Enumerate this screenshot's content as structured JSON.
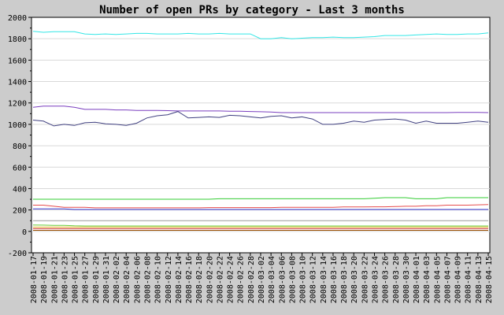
{
  "chart_data": {
    "type": "line",
    "title": "Number of open PRs by category - Last 3 months",
    "xlabel": "",
    "ylabel": "",
    "ylim": [
      -200,
      2000
    ],
    "yticks": [
      -200,
      0,
      200,
      400,
      600,
      800,
      1000,
      1200,
      1400,
      1600,
      1800,
      2000
    ],
    "grid": true,
    "legend": "none",
    "x": [
      "2008-01-17",
      "2008-01-19",
      "2008-01-21",
      "2008-01-23",
      "2008-01-25",
      "2008-01-27",
      "2008-01-29",
      "2008-01-31",
      "2008-02-02",
      "2008-02-04",
      "2008-02-06",
      "2008-02-08",
      "2008-02-10",
      "2008-02-12",
      "2008-02-14",
      "2008-02-16",
      "2008-02-18",
      "2008-02-20",
      "2008-02-22",
      "2008-02-24",
      "2008-02-26",
      "2008-02-28",
      "2008-03-02",
      "2008-03-04",
      "2008-03-06",
      "2008-03-08",
      "2008-03-10",
      "2008-03-12",
      "2008-03-14",
      "2008-03-16",
      "2008-03-18",
      "2008-03-20",
      "2008-03-22",
      "2008-03-24",
      "2008-03-26",
      "2008-03-28",
      "2008-03-30",
      "2008-04-01",
      "2008-04-03",
      "2008-04-05",
      "2008-04-07",
      "2008-04-09",
      "2008-04-11",
      "2008-04-13",
      "2008-04-15"
    ],
    "series": [
      {
        "color": "#33e6e6",
        "values": [
          1870,
          1860,
          1865,
          1865,
          1865,
          1845,
          1840,
          1845,
          1840,
          1845,
          1850,
          1850,
          1845,
          1845,
          1845,
          1850,
          1845,
          1845,
          1850,
          1845,
          1845,
          1845,
          1800,
          1800,
          1810,
          1800,
          1805,
          1810,
          1810,
          1815,
          1810,
          1810,
          1815,
          1820,
          1830,
          1830,
          1830,
          1835,
          1840,
          1845,
          1840,
          1840,
          1845,
          1845,
          1855
        ]
      },
      {
        "color": "#7a3fbf",
        "values": [
          1160,
          1170,
          1170,
          1170,
          1160,
          1140,
          1140,
          1140,
          1135,
          1135,
          1130,
          1130,
          1130,
          1128,
          1125,
          1125,
          1125,
          1125,
          1125,
          1122,
          1122,
          1120,
          1118,
          1115,
          1110,
          1110,
          1110,
          1110,
          1110,
          1110,
          1110,
          1110,
          1110,
          1110,
          1110,
          1110,
          1110,
          1110,
          1110,
          1110,
          1110,
          1112,
          1112,
          1112,
          1110
        ]
      },
      {
        "color": "#404080",
        "values": [
          1040,
          1030,
          985,
          1000,
          990,
          1015,
          1020,
          1005,
          1000,
          990,
          1010,
          1060,
          1080,
          1090,
          1120,
          1060,
          1065,
          1070,
          1065,
          1085,
          1080,
          1070,
          1060,
          1075,
          1080,
          1060,
          1070,
          1050,
          1000,
          1000,
          1010,
          1030,
          1020,
          1040,
          1045,
          1050,
          1040,
          1010,
          1030,
          1010,
          1010,
          1010,
          1020,
          1030,
          1020
        ]
      },
      {
        "color": "#33cc33",
        "values": [
          300,
          300,
          300,
          300,
          300,
          300,
          300,
          300,
          300,
          300,
          300,
          300,
          300,
          300,
          300,
          300,
          300,
          300,
          305,
          305,
          305,
          305,
          305,
          305,
          305,
          305,
          305,
          305,
          305,
          305,
          305,
          305,
          305,
          310,
          315,
          315,
          315,
          305,
          305,
          305,
          315,
          315,
          315,
          315,
          315
        ]
      },
      {
        "color": "#e64d4d",
        "values": [
          245,
          245,
          235,
          225,
          225,
          225,
          220,
          220,
          220,
          220,
          220,
          220,
          220,
          220,
          220,
          220,
          220,
          222,
          222,
          222,
          222,
          222,
          222,
          222,
          225,
          225,
          225,
          225,
          225,
          225,
          228,
          228,
          228,
          230,
          230,
          232,
          235,
          235,
          240,
          240,
          245,
          245,
          245,
          248,
          250
        ]
      },
      {
        "color": "#3333cc",
        "values": [
          210,
          210,
          210,
          210,
          205,
          205,
          205,
          205,
          205,
          205,
          205,
          205,
          205,
          205,
          205,
          205,
          205,
          205,
          205,
          205,
          205,
          205,
          205,
          205,
          205,
          205,
          205,
          205,
          205,
          205,
          205,
          205,
          205,
          205,
          205,
          205,
          205,
          205,
          205,
          205,
          205,
          205,
          205,
          205,
          205
        ]
      },
      {
        "color": "#999999",
        "values": [
          100,
          100,
          100,
          100,
          100,
          100,
          100,
          100,
          100,
          100,
          100,
          100,
          100,
          100,
          100,
          100,
          100,
          100,
          100,
          100,
          100,
          100,
          100,
          100,
          100,
          100,
          100,
          100,
          100,
          100,
          100,
          100,
          100,
          100,
          100,
          100,
          100,
          100,
          100,
          100,
          100,
          100,
          100,
          100,
          100
        ]
      },
      {
        "color": "#66cc33",
        "values": [
          60,
          58,
          55,
          55,
          52,
          50,
          50,
          50,
          50,
          50,
          50,
          50,
          50,
          50,
          50,
          50,
          50,
          50,
          50,
          50,
          50,
          50,
          50,
          50,
          50,
          50,
          50,
          50,
          50,
          50,
          50,
          50,
          50,
          50,
          50,
          50,
          50,
          50,
          50,
          50,
          50,
          50,
          50,
          50,
          50
        ]
      },
      {
        "color": "#e6b333",
        "values": [
          40,
          40,
          40,
          40,
          40,
          40,
          40,
          40,
          40,
          40,
          40,
          40,
          40,
          40,
          40,
          40,
          40,
          40,
          40,
          40,
          40,
          40,
          40,
          40,
          40,
          40,
          40,
          40,
          40,
          40,
          40,
          40,
          40,
          40,
          40,
          40,
          40,
          40,
          40,
          40,
          40,
          40,
          40,
          40,
          40
        ]
      },
      {
        "color": "#cc3333",
        "values": [
          25,
          25,
          25,
          25,
          25,
          25,
          25,
          25,
          25,
          25,
          25,
          25,
          25,
          25,
          25,
          25,
          25,
          25,
          25,
          25,
          25,
          25,
          25,
          25,
          25,
          25,
          25,
          25,
          25,
          25,
          25,
          25,
          25,
          25,
          25,
          25,
          25,
          25,
          25,
          25,
          25,
          25,
          25,
          25,
          25
        ]
      },
      {
        "color": "#994d00",
        "values": [
          10,
          10,
          10,
          10,
          10,
          10,
          10,
          10,
          10,
          10,
          10,
          10,
          10,
          10,
          10,
          10,
          10,
          10,
          10,
          10,
          10,
          10,
          10,
          10,
          10,
          10,
          10,
          10,
          10,
          10,
          10,
          10,
          10,
          10,
          10,
          10,
          10,
          10,
          10,
          10,
          10,
          10,
          10,
          10,
          10
        ]
      }
    ]
  }
}
